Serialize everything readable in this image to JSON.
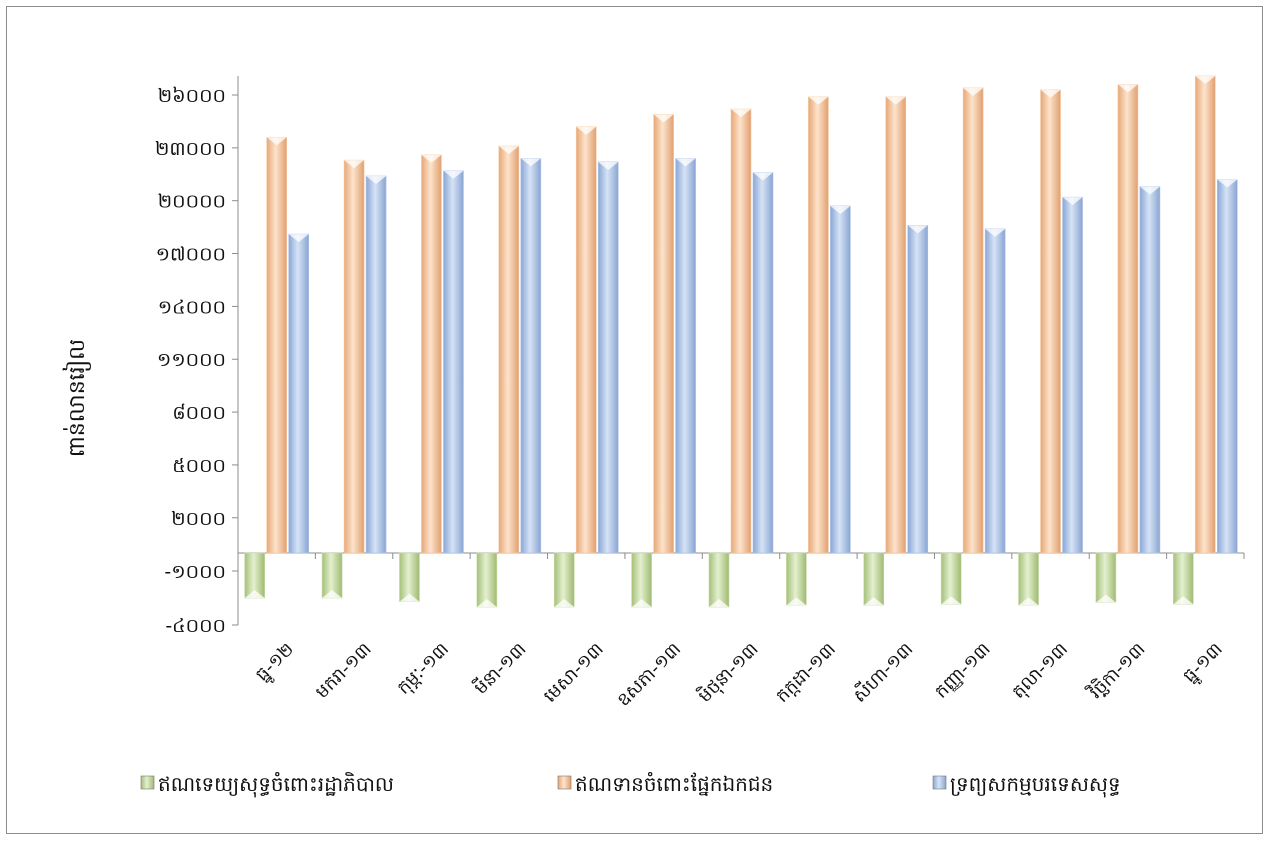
{
  "chart_data": {
    "type": "bar",
    "ylabel": "ពាន់លានរៀល",
    "categories": [
      "ធ្នូ-១២",
      "មករា-១៣",
      "កុម្ភៈ-១៣",
      "មីនា-១៣",
      "មេសា-១៣",
      "ឧសភា-១៣",
      "មិថុនា-១៣",
      "កក្កដា-១៣",
      "សីហា-១៣",
      "កញ្ញា-១៣",
      "តុលា-១៣",
      "វិច្ឆិកា-១៣",
      "ធ្នូ-១៣"
    ],
    "ylim": [
      -4000,
      26000
    ],
    "yticks": [
      -4000,
      -1000,
      2000,
      5000,
      8000,
      11000,
      14000,
      17000,
      20000,
      23000,
      26000
    ],
    "ytick_labels": [
      "-៤០០០",
      "-១០០០",
      "២០០០",
      "៥០០០",
      "៨០០០",
      "១១០០០",
      "១៤០០០",
      "១៧០០០",
      "២០០០០",
      "២៣០០០",
      "២៦០០០"
    ],
    "series": [
      {
        "name": "ឥណទេយ្យសុទ្ធចំពោះរដ្ឋាភិបាល",
        "color": "#c9dca8",
        "values": [
          -2500,
          -2500,
          -2700,
          -3000,
          -3000,
          -3000,
          -3000,
          -2900,
          -2900,
          -2850,
          -2900,
          -2750,
          -2850
        ]
      },
      {
        "name": "ឥណទានចំពោះផ្នែកឯកជន",
        "color": "#f7c9a0",
        "values": [
          23600,
          22300,
          22600,
          23100,
          24200,
          24900,
          25200,
          25900,
          25900,
          26400,
          26300,
          26600,
          27500
        ]
      },
      {
        "name": "ទ្រព្យសកម្មបរទេសសុទ្ធ",
        "color": "#aec3e6",
        "values": [
          18100,
          21400,
          21700,
          22400,
          22200,
          22400,
          21600,
          19700,
          18600,
          18400,
          20200,
          20800,
          21200
        ]
      }
    ],
    "grid": false,
    "legend": "bottom"
  }
}
